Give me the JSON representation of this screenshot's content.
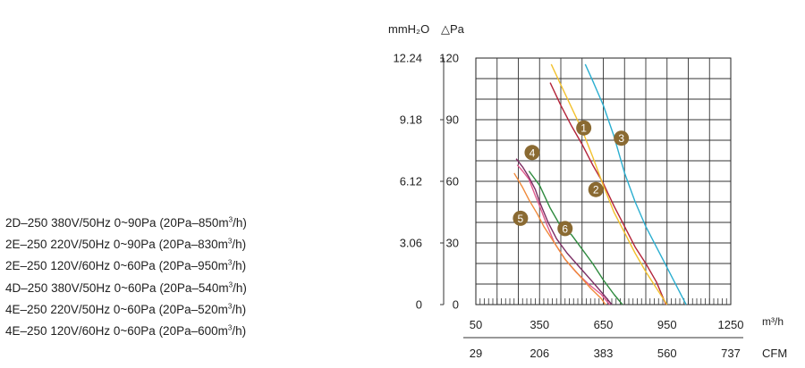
{
  "legend_rows": [
    {
      "model": "2D–250",
      "spec": "380V/50Hz",
      "pressure": "0~90Pa",
      "flow": "(20Pa–850m",
      "unit_tail": "/h)"
    },
    {
      "model": "2E–250",
      "spec": "220V/50Hz",
      "pressure": "0~90Pa",
      "flow": "(20Pa–830m",
      "unit_tail": "/h)"
    },
    {
      "model": "2E–250",
      "spec": "120V/60Hz",
      "pressure": "0~60Pa",
      "flow": "(20Pa–950m",
      "unit_tail": "/h)"
    },
    {
      "model": "4D–250",
      "spec": "380V/50Hz",
      "pressure": "0~60Pa",
      "flow": "(20Pa–540m",
      "unit_tail": "/h)"
    },
    {
      "model": "4E–250",
      "spec": "220V/50Hz",
      "pressure": "0~60Pa",
      "flow": "(20Pa–520m",
      "unit_tail": "/h)"
    },
    {
      "model": "4E–250",
      "spec": "120V/60Hz",
      "pressure": "0~60Pa",
      "flow": "(20Pa–600m",
      "unit_tail": "/h)"
    }
  ],
  "chart_data": {
    "type": "line",
    "title": "",
    "y_units": {
      "left": "mmH₂O",
      "right": "△Pa"
    },
    "ylim": [
      0,
      120
    ],
    "xlim": [
      50,
      1250
    ],
    "y_ticks_mmH2O": [
      "0",
      "3.06",
      "6.12",
      "9.18",
      "12.24"
    ],
    "y_ticks_Pa": [
      "0",
      "30",
      "60",
      "90",
      "120"
    ],
    "y_tick_values": [
      0,
      30,
      60,
      90,
      120
    ],
    "x_unit_m3h": "m³/h",
    "x_ticks_m3h": [
      "50",
      "350",
      "650",
      "950",
      "1250"
    ],
    "x_tick_values": [
      50,
      350,
      650,
      950,
      1250
    ],
    "x_unit_cfm": "CFM",
    "x_ticks_cfm": [
      "29",
      "206",
      "383",
      "560",
      "737"
    ],
    "grid": true,
    "series": [
      {
        "name": "1",
        "color": "#b3243a",
        "label_at": [
          558,
          86
        ],
        "points": [
          [
            400,
            108
          ],
          [
            450,
            97
          ],
          [
            500,
            87
          ],
          [
            550,
            78
          ],
          [
            600,
            68
          ],
          [
            650,
            59
          ],
          [
            700,
            48
          ],
          [
            750,
            38
          ],
          [
            800,
            28
          ],
          [
            850,
            20
          ],
          [
            900,
            11
          ],
          [
            945,
            0
          ]
        ]
      },
      {
        "name": "2",
        "color": "#f2c12e",
        "label_at": [
          615,
          56
        ],
        "points": [
          [
            405,
            117
          ],
          [
            450,
            107
          ],
          [
            500,
            96
          ],
          [
            550,
            85
          ],
          [
            600,
            72
          ],
          [
            650,
            58
          ],
          [
            700,
            45
          ],
          [
            750,
            35
          ],
          [
            800,
            25
          ],
          [
            850,
            16
          ],
          [
            900,
            8
          ],
          [
            950,
            0
          ]
        ]
      },
      {
        "name": "3",
        "color": "#2aaed0",
        "label_at": [
          735,
          81
        ],
        "points": [
          [
            565,
            117
          ],
          [
            600,
            109
          ],
          [
            650,
            97
          ],
          [
            700,
            82
          ],
          [
            750,
            64
          ],
          [
            800,
            50
          ],
          [
            850,
            38
          ],
          [
            900,
            28
          ],
          [
            950,
            18
          ],
          [
            1000,
            8
          ],
          [
            1040,
            0
          ]
        ]
      },
      {
        "name": "4",
        "color": "#2e8a3e",
        "label_at": [
          315,
          74
        ],
        "points": [
          [
            300,
            65
          ],
          [
            350,
            58
          ],
          [
            400,
            47
          ],
          [
            450,
            38
          ],
          [
            500,
            34
          ],
          [
            550,
            27
          ],
          [
            600,
            20
          ],
          [
            650,
            12
          ],
          [
            700,
            5
          ],
          [
            740,
            0
          ]
        ]
      },
      {
        "name": "5",
        "color": "#e05a8e",
        "label_at": [
          260,
          42
        ],
        "points": [
          [
            245,
            68
          ],
          [
            270,
            65
          ],
          [
            300,
            61
          ],
          [
            330,
            53
          ],
          [
            350,
            48
          ],
          [
            380,
            40
          ],
          [
            420,
            30
          ],
          [
            470,
            22
          ],
          [
            520,
            16
          ],
          [
            580,
            10
          ],
          [
            640,
            5
          ],
          [
            680,
            0
          ]
        ]
      },
      {
        "name": "6",
        "color": "#7b2d63",
        "label_at": [
          470,
          37
        ],
        "points": [
          [
            240,
            71
          ],
          [
            270,
            67
          ],
          [
            300,
            62
          ],
          [
            330,
            56
          ],
          [
            350,
            50
          ],
          [
            390,
            40
          ],
          [
            430,
            32
          ],
          [
            480,
            25
          ],
          [
            540,
            18
          ],
          [
            600,
            11
          ],
          [
            650,
            5
          ],
          [
            690,
            0
          ]
        ]
      },
      {
        "name": "",
        "color": "#f08a3a",
        "label_at": null,
        "points": [
          [
            230,
            64
          ],
          [
            270,
            57
          ],
          [
            300,
            51
          ],
          [
            340,
            44
          ],
          [
            370,
            38
          ],
          [
            420,
            30
          ],
          [
            470,
            22
          ],
          [
            530,
            15
          ],
          [
            590,
            8
          ],
          [
            640,
            3
          ],
          [
            660,
            0
          ]
        ]
      }
    ]
  }
}
